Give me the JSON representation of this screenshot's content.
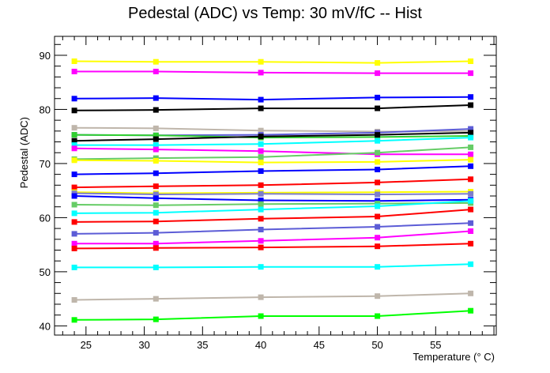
{
  "chart_data": {
    "type": "line",
    "title": "Pedestal (ADC) vs Temp: 30 mV/fC -- Hist",
    "xlabel": "Temperature (° C)",
    "ylabel": "Pedestal (ADC)",
    "xlim": [
      22.3,
      60.2
    ],
    "ylim": [
      38.3,
      93.5
    ],
    "grid": false,
    "legend": "none",
    "xticks": [
      25,
      30,
      35,
      40,
      45,
      50,
      55
    ],
    "yticks": [
      40,
      50,
      60,
      70,
      80,
      90
    ],
    "x": [
      24,
      31,
      40,
      50,
      58
    ],
    "series": [
      {
        "color": "#ffff00",
        "values": [
          88.9,
          88.8,
          88.8,
          88.6,
          88.9
        ]
      },
      {
        "color": "#ff00ff",
        "values": [
          87.0,
          87.0,
          86.8,
          86.7,
          86.7
        ]
      },
      {
        "color": "#0000ff",
        "values": [
          82.0,
          82.1,
          81.8,
          82.2,
          82.3
        ]
      },
      {
        "color": "#000000",
        "values": [
          79.8,
          79.9,
          80.2,
          80.2,
          80.8
        ]
      },
      {
        "color": "#bfb6ab",
        "values": [
          76.6,
          76.5,
          76.1,
          75.9,
          76.0
        ]
      },
      {
        "color": "#5c5cd6",
        "values": [
          75.3,
          75.2,
          75.3,
          75.7,
          76.4
        ]
      },
      {
        "color": "#30d030",
        "values": [
          75.3,
          75.2,
          74.8,
          74.9,
          75.1
        ]
      },
      {
        "color": "#000000",
        "values": [
          74.2,
          74.5,
          75.0,
          75.3,
          75.7
        ]
      },
      {
        "color": "#00ffff",
        "values": [
          73.4,
          73.4,
          73.6,
          74.2,
          74.8
        ]
      },
      {
        "color": "#ff00ff",
        "values": [
          72.8,
          72.6,
          72.3,
          71.7,
          71.7
        ]
      },
      {
        "color": "#66cc66",
        "values": [
          70.8,
          71.0,
          71.2,
          72.0,
          73.0
        ]
      },
      {
        "color": "#ffff00",
        "values": [
          70.6,
          70.5,
          70.2,
          70.3,
          70.7
        ]
      },
      {
        "color": "#0000ff",
        "values": [
          68.0,
          68.2,
          68.6,
          68.9,
          69.5
        ]
      },
      {
        "color": "#ff0000",
        "values": [
          65.6,
          65.8,
          66.0,
          66.5,
          67.1
        ]
      },
      {
        "color": "#ffff00",
        "values": [
          64.7,
          64.5,
          64.6,
          64.7,
          64.8
        ]
      },
      {
        "color": "#7d7dcc",
        "values": [
          64.5,
          64.3,
          64.4,
          64.3,
          64.4
        ]
      },
      {
        "color": "#0000ff",
        "values": [
          64.0,
          63.6,
          63.2,
          63.1,
          63.3
        ]
      },
      {
        "color": "#66cc66",
        "values": [
          62.4,
          62.3,
          62.5,
          62.6,
          62.7
        ]
      },
      {
        "color": "#00ffff",
        "values": [
          60.8,
          60.9,
          61.5,
          62.1,
          63.1
        ]
      },
      {
        "color": "#ff0000",
        "values": [
          59.2,
          59.3,
          59.8,
          60.2,
          61.5
        ]
      },
      {
        "color": "#5c5cd6",
        "values": [
          57.0,
          57.2,
          57.8,
          58.3,
          59.0
        ]
      },
      {
        "color": "#ff00ff",
        "values": [
          55.2,
          55.2,
          55.7,
          56.3,
          57.5
        ]
      },
      {
        "color": "#ff0000",
        "values": [
          54.3,
          54.4,
          54.5,
          54.7,
          55.2
        ]
      },
      {
        "color": "#00ffff",
        "values": [
          50.8,
          50.8,
          50.9,
          50.9,
          51.4
        ]
      },
      {
        "color": "#bfb6ab",
        "values": [
          44.8,
          45.0,
          45.3,
          45.5,
          46.0
        ]
      },
      {
        "color": "#00ff00",
        "values": [
          41.1,
          41.2,
          41.8,
          41.8,
          42.8
        ]
      }
    ]
  }
}
